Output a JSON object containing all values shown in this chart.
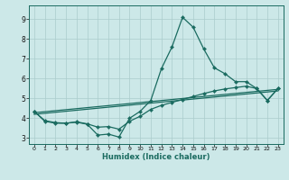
{
  "xlabel": "Humidex (Indice chaleur)",
  "xlim": [
    -0.5,
    23.5
  ],
  "ylim": [
    2.7,
    9.7
  ],
  "xticks": [
    0,
    1,
    2,
    3,
    4,
    5,
    6,
    7,
    8,
    9,
    10,
    11,
    12,
    13,
    14,
    15,
    16,
    17,
    18,
    19,
    20,
    21,
    22,
    23
  ],
  "yticks": [
    3,
    4,
    5,
    6,
    7,
    8,
    9
  ],
  "bg_color": "#cce8e8",
  "grid_color": "#aacccc",
  "line_color": "#1a6b60",
  "lw": 0.9,
  "ms": 2.2,
  "main_x": [
    0,
    1,
    2,
    3,
    4,
    5,
    6,
    7,
    8,
    9,
    10,
    11,
    12,
    13,
    14,
    15,
    16,
    17,
    18,
    19,
    20,
    21,
    22,
    23
  ],
  "main_y": [
    4.35,
    3.85,
    3.75,
    3.75,
    3.8,
    3.7,
    3.15,
    3.2,
    3.05,
    4.0,
    4.35,
    4.9,
    6.5,
    7.6,
    9.1,
    8.6,
    7.5,
    6.55,
    6.25,
    5.85,
    5.85,
    5.5,
    4.9,
    5.5
  ],
  "smooth_x": [
    0,
    1,
    2,
    3,
    4,
    5,
    6,
    7,
    8,
    9,
    10,
    11,
    12,
    13,
    14,
    15,
    16,
    17,
    18,
    19,
    20,
    21,
    22,
    23
  ],
  "smooth_y": [
    4.35,
    3.88,
    3.78,
    3.75,
    3.82,
    3.72,
    3.55,
    3.58,
    3.45,
    3.85,
    4.1,
    4.45,
    4.65,
    4.8,
    4.95,
    5.1,
    5.25,
    5.38,
    5.48,
    5.55,
    5.62,
    5.5,
    4.9,
    5.5
  ],
  "trend1_x": [
    0,
    23
  ],
  "trend1_y": [
    4.2,
    5.38
  ],
  "trend2_x": [
    0,
    23
  ],
  "trend2_y": [
    4.28,
    5.46
  ]
}
